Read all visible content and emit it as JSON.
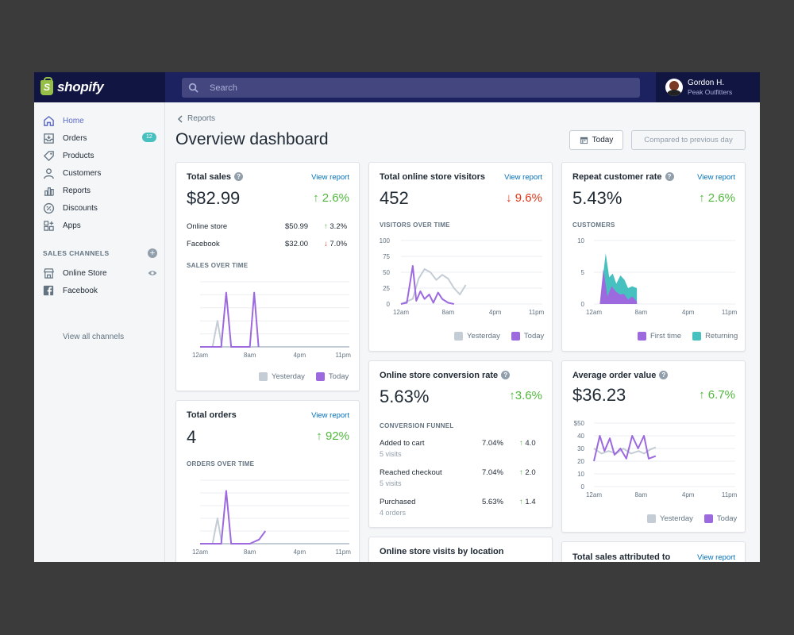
{
  "brand": {
    "name": "shopify",
    "mark": "S"
  },
  "search": {
    "placeholder": "Search"
  },
  "account": {
    "name": "Gordon H.",
    "store": "Peak Outfitters"
  },
  "sidebar": {
    "items": [
      {
        "label": "Home",
        "icon": "home-icon"
      },
      {
        "label": "Orders",
        "icon": "orders-icon",
        "badge": "12"
      },
      {
        "label": "Products",
        "icon": "tag-icon"
      },
      {
        "label": "Customers",
        "icon": "person-icon"
      },
      {
        "label": "Reports",
        "icon": "bar-chart-icon"
      },
      {
        "label": "Discounts",
        "icon": "discount-icon"
      },
      {
        "label": "Apps",
        "icon": "apps-icon"
      }
    ],
    "channels_title": "SALES CHANNELS",
    "channels": [
      {
        "label": "Online Store",
        "icon": "store-icon"
      },
      {
        "label": "Facebook",
        "icon": "facebook-icon"
      }
    ],
    "view_all": "View all channels"
  },
  "header": {
    "breadcrumb": "Reports",
    "title": "Overview dashboard",
    "today_btn": "Today",
    "compare_btn": "Compared to previous day"
  },
  "colors": {
    "today": "#9c6ade",
    "yesterday": "#c4cdd5",
    "returning": "#47c1bf",
    "up": "#50b83c",
    "down": "#de3618",
    "link": "#006fbb"
  },
  "cards": {
    "total_sales": {
      "title": "Total sales",
      "link": "View report",
      "value": "$82.99",
      "delta": "2.6%",
      "rows": [
        {
          "label": "Online store",
          "value": "$50.99",
          "delta": "3.2%",
          "dir": "up"
        },
        {
          "label": "Facebook",
          "value": "$32.00",
          "delta": "7.0%",
          "dir": "down"
        }
      ],
      "chart_label": "SALES OVER TIME",
      "legend_yesterday": "Yesterday",
      "legend_today": "Today"
    },
    "total_orders": {
      "title": "Total orders",
      "link": "View report",
      "value": "4",
      "delta": "92%",
      "chart_label": "ORDERS OVER TIME"
    },
    "visitors": {
      "title": "Total online store visitors",
      "link": "View report",
      "value": "452",
      "delta": "9.6%",
      "chart_label": "VISITORS OVER TIME",
      "legend_yesterday": "Yesterday",
      "legend_today": "Today"
    },
    "conversion": {
      "title": "Online store conversion rate",
      "value": "5.63%",
      "delta": "3.6%",
      "funnel_label": "CONVERSION FUNNEL",
      "funnel": [
        {
          "label": "Added to cart",
          "sub": "5 visits",
          "pct": "7.04%",
          "delta": "4.0"
        },
        {
          "label": "Reached checkout",
          "sub": "5 visits",
          "pct": "7.04%",
          "delta": "2.0"
        },
        {
          "label": "Purchased",
          "sub": "4 orders",
          "pct": "5.63%",
          "delta": "1.4"
        }
      ]
    },
    "visits_location": {
      "title": "Online store visits by location"
    },
    "repeat": {
      "title": "Repeat customer rate",
      "link": "View report",
      "value": "5.43%",
      "delta": "2.6%",
      "chart_label": "CUSTOMERS",
      "legend_first": "First time",
      "legend_returning": "Returning"
    },
    "aov": {
      "title": "Average order value",
      "value": "$36.23",
      "delta": "6.7%",
      "legend_yesterday": "Yesterday",
      "legend_today": "Today"
    },
    "attributed": {
      "title": "Total sales attributed to",
      "link": "View report"
    }
  },
  "chart_data": [
    {
      "id": "sales",
      "type": "line",
      "title": "SALES OVER TIME",
      "x_ticks": [
        "12am",
        "8am",
        "4pm",
        "11pm"
      ],
      "x_range": [
        0,
        24
      ],
      "ylim": [
        0,
        60
      ],
      "series": [
        {
          "name": "Yesterday",
          "x": [
            0,
            2,
            2.8,
            3.5,
            24
          ],
          "y": [
            0,
            0,
            24,
            0,
            0
          ]
        },
        {
          "name": "Today",
          "x": [
            0,
            3.4,
            4.2,
            5,
            8,
            8.7,
            9.4
          ],
          "y": [
            0,
            0,
            50,
            0,
            0,
            50,
            0
          ]
        }
      ]
    },
    {
      "id": "orders",
      "type": "line",
      "title": "ORDERS OVER TIME",
      "x_ticks": [
        "12am",
        "8am",
        "4pm",
        "11pm"
      ],
      "x_range": [
        0,
        24
      ],
      "ylim": [
        0,
        60
      ],
      "series": [
        {
          "name": "Yesterday",
          "x": [
            0,
            2,
            2.8,
            3.5,
            24
          ],
          "y": [
            0,
            0,
            24,
            0,
            0
          ]
        },
        {
          "name": "Today",
          "x": [
            0,
            3.4,
            4.2,
            5,
            8,
            9.5,
            10.5
          ],
          "y": [
            0,
            0,
            50,
            0,
            0,
            4,
            12
          ]
        }
      ]
    },
    {
      "id": "visitors",
      "type": "line",
      "title": "VISITORS OVER TIME",
      "x_ticks": [
        "12am",
        "8am",
        "4pm",
        "11pm"
      ],
      "x_range": [
        0,
        24
      ],
      "y_ticks": [
        "100",
        "75",
        "50",
        "25",
        "0"
      ],
      "ylim": [
        0,
        100
      ],
      "series": [
        {
          "name": "Yesterday",
          "x": [
            0,
            2,
            3,
            4,
            5,
            6,
            7,
            8,
            9,
            10,
            11
          ],
          "y": [
            0,
            8,
            40,
            55,
            50,
            38,
            46,
            40,
            25,
            15,
            30
          ]
        },
        {
          "name": "Today",
          "x": [
            0,
            1,
            2,
            2.6,
            3.3,
            4,
            4.8,
            5.5,
            6.3,
            7,
            8,
            9
          ],
          "y": [
            0,
            2,
            60,
            5,
            20,
            8,
            15,
            2,
            18,
            8,
            2,
            0
          ]
        }
      ]
    },
    {
      "id": "customers",
      "type": "area",
      "title": "CUSTOMERS",
      "x_ticks": [
        "12am",
        "8am",
        "4pm",
        "11pm"
      ],
      "x_range": [
        0,
        24
      ],
      "y_ticks": [
        "10",
        "5",
        "0"
      ],
      "ylim": [
        0,
        10
      ],
      "series": [
        {
          "name": "First time",
          "x": [
            0,
            1,
            1.6,
            2.3,
            3,
            3.7,
            4.4,
            5.1,
            5.8,
            6.5,
            7.3,
            7.3
          ],
          "y": [
            0,
            0,
            5.5,
            1.2,
            2.8,
            2,
            1.5,
            1.6,
            0.7,
            1.2,
            0.4,
            0
          ]
        },
        {
          "name": "Returning",
          "x": [
            0,
            1,
            2,
            2.6,
            3.2,
            3.8,
            4.5,
            5.2,
            5.8,
            6.5,
            7.3,
            7.3
          ],
          "y": [
            0,
            0,
            8,
            4.2,
            4.8,
            3.2,
            4.5,
            3.8,
            2.5,
            2.8,
            2.5,
            0
          ]
        }
      ]
    },
    {
      "id": "aov",
      "type": "line",
      "title": "Average order value",
      "x_ticks": [
        "12am",
        "8am",
        "4pm",
        "11pm"
      ],
      "x_range": [
        0,
        24
      ],
      "y_ticks": [
        "$50",
        "40",
        "30",
        "20",
        "10",
        "0"
      ],
      "ylim": [
        0,
        50
      ],
      "series": [
        {
          "name": "Yesterday",
          "x": [
            0,
            1.3,
            2.5,
            3.8,
            5,
            6.3,
            7.6,
            8.5,
            9.5,
            10.5
          ],
          "y": [
            30,
            26,
            28,
            26,
            30,
            26,
            28,
            26,
            29,
            31
          ]
        },
        {
          "name": "Today",
          "x": [
            0,
            1,
            1.8,
            2.7,
            3.5,
            4.5,
            5.5,
            6.5,
            7.5,
            8.5,
            9.3,
            10.5
          ],
          "y": [
            20,
            40,
            28,
            38,
            25,
            30,
            22,
            40,
            30,
            40,
            22,
            24
          ]
        }
      ]
    }
  ]
}
